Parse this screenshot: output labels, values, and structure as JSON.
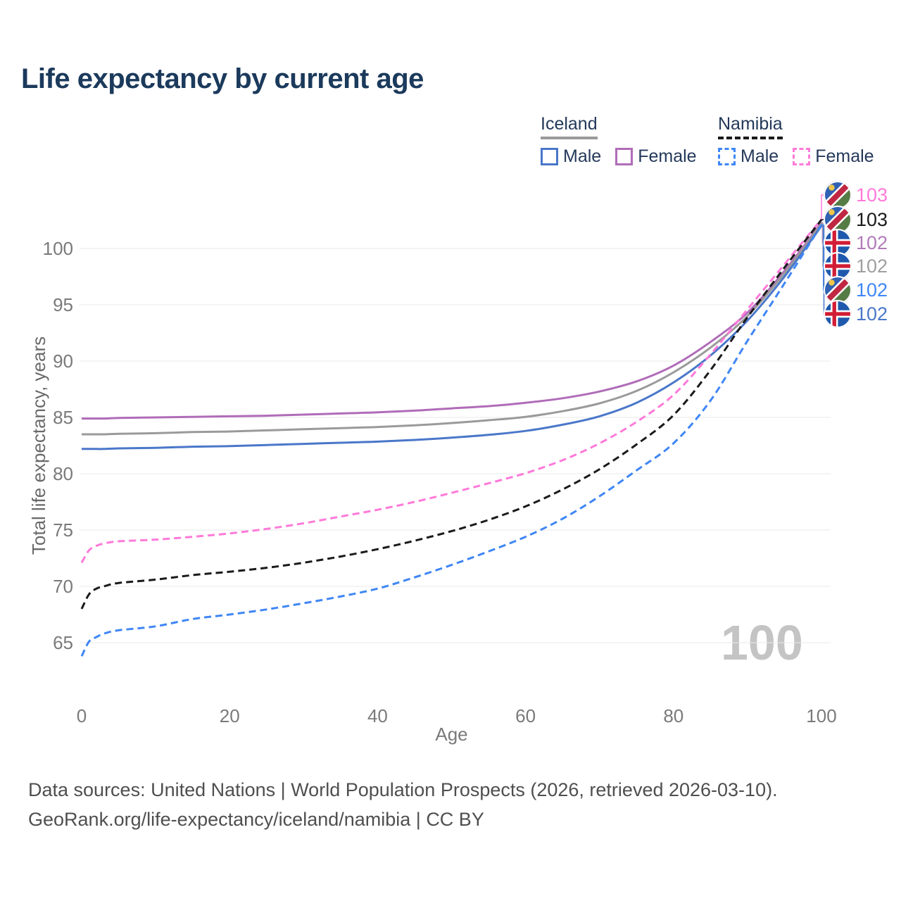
{
  "title": "Life expectancy by current age",
  "watermark": "100",
  "legend": {
    "groups": [
      {
        "name": "Iceland",
        "line_style": "solid",
        "underline_color": "#9a9a9a",
        "items": [
          {
            "label": "Male",
            "color": "#4a77c9"
          },
          {
            "label": "Female",
            "color": "#b06cb8"
          }
        ]
      },
      {
        "name": "Namibia",
        "line_style": "dashed",
        "underline_color": "#1a1a1a",
        "items": [
          {
            "label": "Male",
            "color": "#3f86f5"
          },
          {
            "label": "Female",
            "color": "#ff7ad9"
          }
        ]
      }
    ]
  },
  "footer": {
    "line1": "Data sources: United Nations | World Population Prospects (2026, retrieved 2026-03-10).",
    "line2": "GeoRank.org/life-expectancy/iceland/namibia | CC BY"
  },
  "chart_data": {
    "type": "line",
    "title": "Life expectancy by current age",
    "xlabel": "Age",
    "ylabel": "Total life expectancy, years",
    "x_ticks": [
      0,
      20,
      40,
      60,
      80,
      100
    ],
    "y_ticks": [
      65,
      70,
      75,
      80,
      85,
      90,
      95,
      100
    ],
    "xlim": [
      0,
      100
    ],
    "ylim": [
      63,
      104
    ],
    "grid": "horizontal-only",
    "grid_color": "#e8e8e8",
    "ages": [
      0,
      1,
      2,
      3,
      5,
      10,
      15,
      20,
      25,
      30,
      35,
      40,
      45,
      50,
      55,
      60,
      65,
      70,
      75,
      80,
      85,
      90,
      95,
      100
    ],
    "series": [
      {
        "id": "iceland-female",
        "country": "Iceland",
        "sex": "Female",
        "color": "#b06cb8",
        "dash": "solid",
        "values": [
          84.9,
          84.9,
          84.9,
          84.9,
          84.95,
          85.0,
          85.05,
          85.1,
          85.15,
          85.25,
          85.35,
          85.45,
          85.6,
          85.8,
          86.0,
          86.3,
          86.7,
          87.3,
          88.2,
          89.6,
          91.7,
          94.3,
          98.0,
          102.3
        ]
      },
      {
        "id": "iceland-total",
        "country": "Iceland",
        "sex": "Both",
        "color": "#9a9a9a",
        "dash": "solid",
        "values": [
          83.5,
          83.5,
          83.5,
          83.5,
          83.55,
          83.6,
          83.7,
          83.75,
          83.85,
          83.95,
          84.05,
          84.15,
          84.3,
          84.5,
          84.75,
          85.05,
          85.55,
          86.25,
          87.35,
          89.0,
          91.2,
          94.0,
          97.8,
          102.2
        ]
      },
      {
        "id": "iceland-male",
        "country": "Iceland",
        "sex": "Male",
        "color": "#4a77c9",
        "dash": "solid",
        "values": [
          82.2,
          82.2,
          82.2,
          82.2,
          82.25,
          82.3,
          82.4,
          82.45,
          82.55,
          82.65,
          82.75,
          82.85,
          83.0,
          83.2,
          83.45,
          83.8,
          84.35,
          85.1,
          86.3,
          88.1,
          90.5,
          93.6,
          97.5,
          102.0
        ]
      },
      {
        "id": "namibia-female",
        "country": "Namibia",
        "sex": "Female",
        "color": "#ff7ad9",
        "dash": "dashed",
        "values": [
          72.1,
          73.2,
          73.6,
          73.8,
          74.0,
          74.15,
          74.4,
          74.7,
          75.1,
          75.6,
          76.2,
          76.8,
          77.5,
          78.3,
          79.15,
          80.05,
          81.2,
          82.7,
          84.6,
          87.0,
          90.6,
          94.6,
          98.6,
          102.6
        ]
      },
      {
        "id": "namibia-total",
        "country": "Namibia",
        "sex": "Both",
        "color": "#1a1a1a",
        "dash": "dashed",
        "values": [
          68.0,
          69.3,
          69.8,
          70.0,
          70.3,
          70.6,
          71.0,
          71.3,
          71.65,
          72.1,
          72.65,
          73.3,
          74.05,
          74.9,
          75.9,
          77.1,
          78.6,
          80.4,
          82.6,
          85.2,
          89.2,
          93.9,
          98.3,
          102.55
        ]
      },
      {
        "id": "namibia-male",
        "country": "Namibia",
        "sex": "Male",
        "color": "#3f86f5",
        "dash": "dashed",
        "values": [
          63.8,
          65.1,
          65.5,
          65.8,
          66.1,
          66.45,
          67.1,
          67.5,
          67.95,
          68.5,
          69.1,
          69.8,
          70.8,
          71.9,
          73.1,
          74.4,
          76.0,
          78.0,
          80.3,
          82.7,
          86.5,
          91.8,
          96.9,
          102.1
        ]
      }
    ],
    "end_labels": [
      {
        "series": 3,
        "flag": "namibia",
        "value": "103",
        "color": "#ff7ad9"
      },
      {
        "series": 4,
        "flag": "namibia",
        "value": "103",
        "color": "#1a1a1a"
      },
      {
        "series": 0,
        "flag": "iceland",
        "value": "102",
        "color": "#b07cb8"
      },
      {
        "series": 1,
        "flag": "iceland",
        "value": "102",
        "color": "#9f9f9f"
      },
      {
        "series": 5,
        "flag": "namibia",
        "value": "102",
        "color": "#3f86f5"
      },
      {
        "series": 2,
        "flag": "iceland",
        "value": "102",
        "color": "#4a77c9"
      }
    ]
  }
}
